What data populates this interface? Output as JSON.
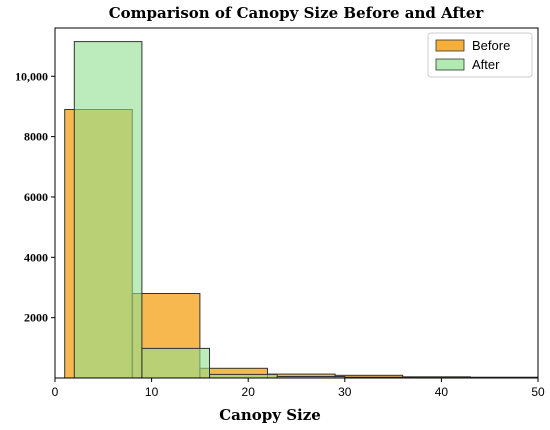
{
  "chart_data": {
    "type": "bar",
    "title": "Comparison of Canopy Size Before and After",
    "xlabel": "Canopy Size",
    "ylabel": "",
    "xlim": [
      0,
      50
    ],
    "ylim": [
      0,
      11600
    ],
    "x_ticks": [
      0,
      10,
      20,
      30,
      40,
      50
    ],
    "y_ticks": [
      {
        "value": 2000,
        "label": "2000"
      },
      {
        "value": 4000,
        "label": "4000"
      },
      {
        "value": 6000,
        "label": "6000"
      },
      {
        "value": 8000,
        "label": "8000"
      },
      {
        "value": 10000,
        "label": "10,000"
      }
    ],
    "grid": false,
    "legend_position": "top-right",
    "series": [
      {
        "name": "Before",
        "color": "#f5a623",
        "bins": [
          {
            "x0": 1,
            "x1": 8,
            "value": 8900
          },
          {
            "x0": 8,
            "x1": 15,
            "value": 2800
          },
          {
            "x0": 15,
            "x1": 22,
            "value": 320
          },
          {
            "x0": 22,
            "x1": 29,
            "value": 130
          },
          {
            "x0": 29,
            "x1": 36,
            "value": 90
          },
          {
            "x0": 36,
            "x1": 43,
            "value": 40
          },
          {
            "x0": 43,
            "x1": 50,
            "value": 25
          }
        ]
      },
      {
        "name": "After",
        "color": "#90e090",
        "bins": [
          {
            "x0": 2,
            "x1": 9,
            "value": 11150
          },
          {
            "x0": 9,
            "x1": 16,
            "value": 980
          },
          {
            "x0": 16,
            "x1": 23,
            "value": 120
          },
          {
            "x0": 23,
            "x1": 30,
            "value": 50
          },
          {
            "x0": 30,
            "x1": 37,
            "value": 25
          },
          {
            "x0": 37,
            "x1": 44,
            "value": 12
          },
          {
            "x0": 44,
            "x1": 51,
            "value": 6
          }
        ]
      }
    ]
  }
}
